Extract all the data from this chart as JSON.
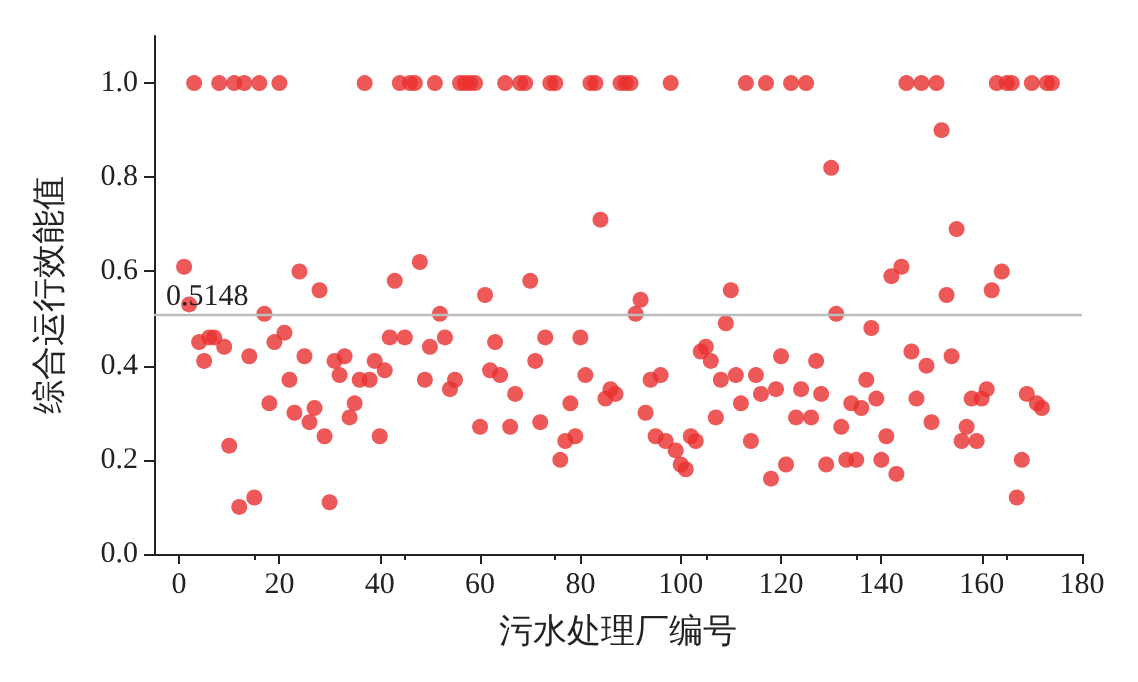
{
  "chart_data": {
    "type": "scatter",
    "xlabel": "污水处理厂编号",
    "ylabel": "综合运行效能值",
    "xlim": [
      -5,
      180
    ],
    "xticks": [
      0,
      20,
      40,
      60,
      80,
      100,
      120,
      140,
      160,
      180
    ],
    "ylim": [
      0,
      1.1
    ],
    "yticks": [
      {
        "value": 0,
        "label": "0.0"
      },
      0.2,
      0.4,
      0.6,
      0.8,
      {
        "value": 1,
        "label": "1.0"
      }
    ],
    "grid": false,
    "marker": "circle",
    "ref_lines": [
      {
        "axis": "y",
        "value": 0.5148,
        "label": "0.5148",
        "color": "#bdbdbd"
      }
    ],
    "series": [
      {
        "color": "#e8302e",
        "x": [
          1,
          2,
          3,
          4,
          5,
          6,
          7,
          8,
          9,
          10,
          11,
          12,
          13,
          14,
          15,
          16,
          17,
          18,
          19,
          20,
          21,
          22,
          23,
          24,
          25,
          26,
          27,
          28,
          29,
          30,
          31,
          32,
          33,
          34,
          35,
          36,
          37,
          38,
          39,
          40,
          41,
          42,
          43,
          44,
          45,
          46,
          47,
          48,
          49,
          50,
          51,
          52,
          53,
          54,
          55,
          56,
          57,
          58,
          59,
          60,
          61,
          62,
          63,
          64,
          65,
          66,
          67,
          68,
          69,
          70,
          71,
          72,
          73,
          74,
          75,
          76,
          77,
          78,
          79,
          80,
          81,
          82,
          83,
          84,
          85,
          86,
          87,
          88,
          89,
          90,
          91,
          92,
          93,
          94,
          95,
          96,
          97,
          98,
          99,
          100,
          101,
          102,
          103,
          104,
          105,
          106,
          107,
          108,
          109,
          110,
          111,
          112,
          113,
          114,
          115,
          116,
          117,
          118,
          119,
          120,
          121,
          122,
          123,
          124,
          125,
          126,
          127,
          128,
          129,
          130,
          131,
          132,
          133,
          134,
          135,
          136,
          137,
          138,
          139,
          140,
          141,
          142,
          143,
          144,
          145,
          146,
          147,
          148,
          149,
          150,
          151,
          152,
          153,
          154,
          155,
          156,
          157,
          158,
          159,
          160,
          161,
          162,
          163,
          164,
          165,
          166,
          167,
          168,
          169,
          170,
          171,
          172,
          173,
          174
        ],
        "values": [
          0.61,
          0.53,
          1,
          0.45,
          0.41,
          0.46,
          0.46,
          1,
          0.44,
          0.23,
          1,
          0.1,
          1,
          0.42,
          0.12,
          1,
          0.51,
          0.32,
          0.45,
          1,
          0.47,
          0.37,
          0.3,
          0.6,
          0.42,
          0.28,
          0.31,
          0.56,
          0.25,
          0.11,
          0.41,
          0.38,
          0.42,
          0.29,
          0.32,
          0.37,
          1,
          0.37,
          0.41,
          0.25,
          0.39,
          0.46,
          0.58,
          1,
          0.46,
          1,
          1,
          0.62,
          0.37,
          0.44,
          1,
          0.51,
          0.46,
          0.35,
          0.37,
          1,
          1,
          1,
          1,
          0.27,
          0.55,
          0.39,
          0.45,
          0.38,
          1,
          0.27,
          0.34,
          1,
          1,
          0.58,
          0.41,
          0.28,
          0.46,
          1,
          1,
          0.2,
          0.24,
          0.32,
          0.25,
          0.46,
          0.38,
          1,
          1,
          0.71,
          0.33,
          0.35,
          0.34,
          1,
          1,
          1,
          0.51,
          0.54,
          0.3,
          0.37,
          0.25,
          0.38,
          0.24,
          1,
          0.22,
          0.19,
          0.18,
          0.25,
          0.24,
          0.43,
          0.44,
          0.41,
          0.29,
          0.37,
          0.49,
          0.56,
          0.38,
          0.32,
          1,
          0.24,
          0.38,
          0.34,
          1,
          0.16,
          0.35,
          0.42,
          0.19,
          1,
          0.29,
          0.35,
          1,
          0.29,
          0.41,
          0.34,
          0.19,
          0.82,
          0.51,
          0.27,
          0.2,
          0.32,
          0.2,
          0.31,
          0.37,
          0.48,
          0.33,
          0.2,
          0.25,
          0.59,
          0.17,
          0.61,
          1,
          0.43,
          0.33,
          1,
          0.4,
          0.28,
          1,
          0.9,
          0.55,
          0.42,
          0.69,
          0.24,
          0.27,
          0.33,
          0.24,
          0.33,
          0.35,
          0.56,
          1,
          0.6,
          1,
          1,
          0.12,
          0.2,
          0.34,
          1,
          0.32,
          0.31,
          1,
          1
        ]
      }
    ]
  }
}
